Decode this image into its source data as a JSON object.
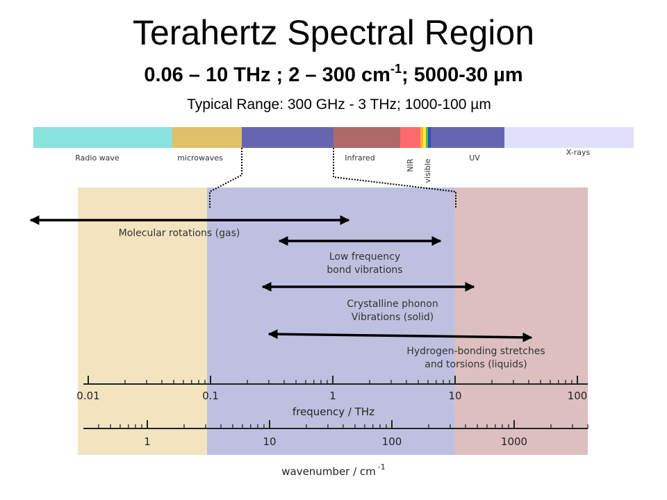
{
  "header": {
    "title": "Terahertz Spectral Region",
    "subtitle": {
      "main": "0.06 – 10 THz ; 2  –  300 cm",
      "sup": "-1",
      "rest": "; 5000-30 µm"
    },
    "typical_range": "Typical Range: 300 GHz - 3 THz; 1000-100 µm"
  },
  "spectrum_bands": [
    "Radio wave",
    "microwaves",
    "Infrared",
    "NIR",
    "visible",
    "UV",
    "X-rays"
  ],
  "processes": [
    {
      "lines": [
        "Molecular rotations (gas)"
      ]
    },
    {
      "lines": [
        "Low frequency",
        "bond vibrations"
      ]
    },
    {
      "lines": [
        "Crystalline phonon",
        "Vibrations (solid)"
      ]
    },
    {
      "lines": [
        "Hydrogen-bonding stretches",
        "and torsions (liquids)"
      ]
    }
  ],
  "frequency_axis": {
    "label": "frequency / THz",
    "ticks": [
      "0.01",
      "0.1",
      "1",
      "10",
      "100"
    ]
  },
  "wavenumber_axis": {
    "label": "wavenumber / cm",
    "sup": "-1",
    "ticks": [
      "1",
      "10",
      "100",
      "1000"
    ]
  }
}
